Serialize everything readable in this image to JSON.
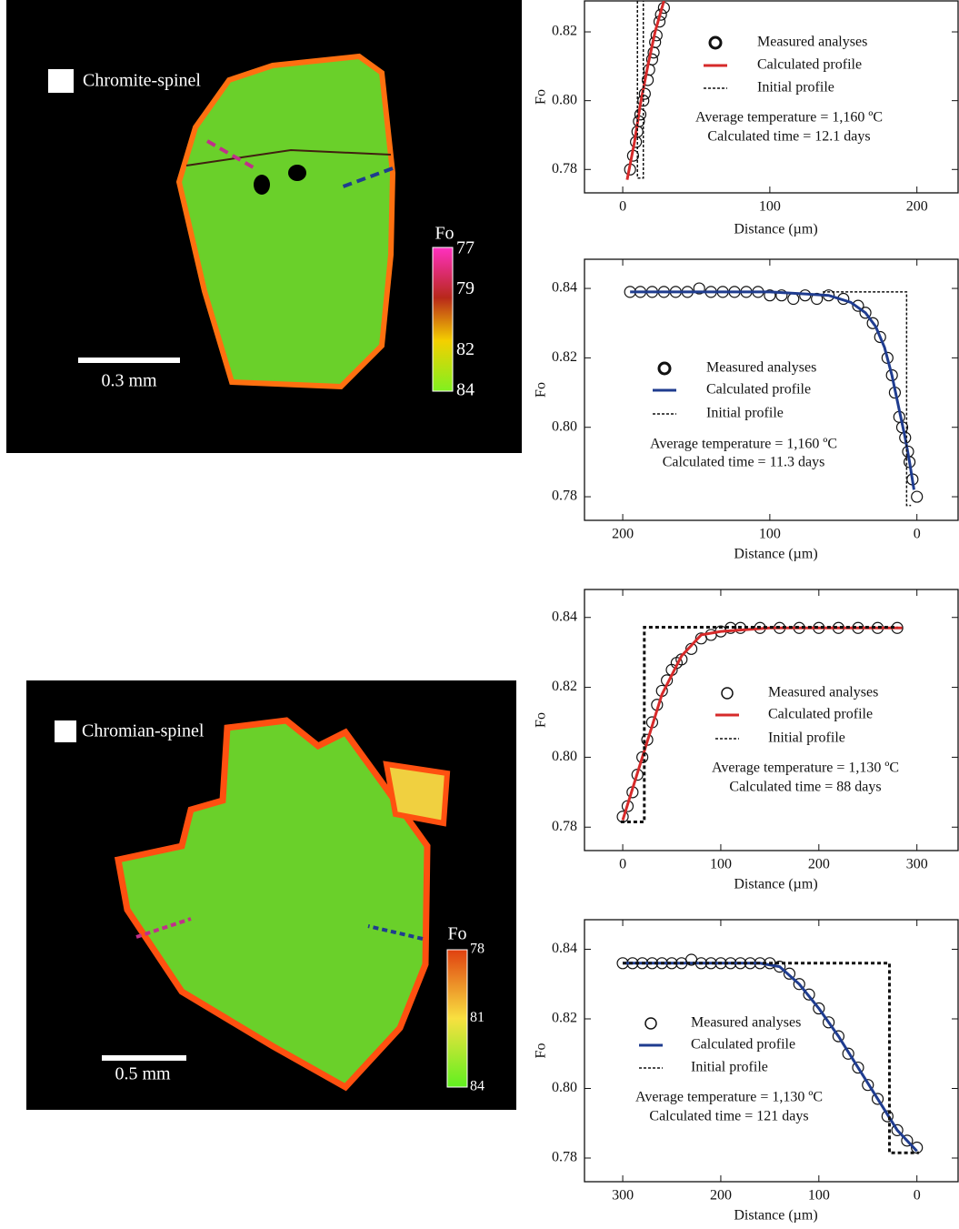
{
  "maps": [
    {
      "legend_label": "Chromite-spinel",
      "scale_bar": "0.3 mm",
      "colorbar": {
        "title": "Fo",
        "ticks": [
          77,
          79,
          82,
          84
        ]
      }
    },
    {
      "legend_label": "Chromian-spinel",
      "scale_bar": "0.5 mm",
      "colorbar": {
        "title": "Fo",
        "ticks": [
          78,
          81,
          84
        ]
      }
    }
  ],
  "chart_data": [
    {
      "type": "line",
      "xlabel": "Distance (µm)",
      "ylabel": "Fo",
      "xlim": [
        -26,
        228
      ],
      "ylim": [
        0.7732,
        0.829
      ],
      "xticks": [
        0,
        100,
        200
      ],
      "yticks": [
        0.78,
        {
          "value": 0.8,
          "label": "0.80"
        },
        0.82
      ],
      "annotations": [
        "Average temperature = 1,160 ºC",
        "Calculated time = 12.1 days"
      ],
      "series": [
        {
          "name": "Measured analyses",
          "color": "#111111",
          "style": "markers",
          "x": [
            5,
            7,
            9,
            10,
            11,
            12,
            14,
            15,
            17,
            18,
            20,
            21,
            22,
            23,
            25,
            26,
            28
          ],
          "values": [
            0.78,
            0.784,
            0.788,
            0.791,
            0.794,
            0.796,
            0.8,
            0.802,
            0.806,
            0.809,
            0.812,
            0.814,
            0.817,
            0.819,
            0.823,
            0.825,
            0.827
          ]
        },
        {
          "name": "Calculated profile",
          "color": "#d62a2a",
          "style": "solid",
          "x": [
            3,
            8,
            12,
            17,
            22,
            28
          ],
          "values": [
            0.777,
            0.788,
            0.799,
            0.81,
            0.82,
            0.829
          ]
        },
        {
          "name": "Initial profile",
          "color": "#111111",
          "style": "dashed",
          "x": [
            10,
            10,
            14,
            14
          ],
          "values": [
            0.829,
            0.7775,
            0.7775,
            0.829
          ]
        }
      ]
    },
    {
      "type": "line",
      "xlabel": "Distance (µm)",
      "ylabel": "Fo",
      "xlim": [
        226,
        -28
      ],
      "ylim": [
        0.7732,
        0.8484
      ],
      "xticks": [
        200,
        100,
        0
      ],
      "yticks": [
        0.78,
        {
          "value": 0.8,
          "label": "0.80"
        },
        0.82,
        0.84
      ],
      "annotations": [
        "Average temperature = 1,160 ºC",
        "Calculated time = 11.3 days"
      ],
      "series": [
        {
          "name": "Measured analyses",
          "color": "#111111",
          "style": "markers",
          "x": [
            195,
            188,
            180,
            172,
            164,
            156,
            148,
            140,
            132,
            124,
            116,
            108,
            100,
            92,
            84,
            76,
            68,
            60,
            50,
            40,
            35,
            30,
            25,
            20,
            17,
            15,
            12,
            10,
            8,
            6,
            5,
            3,
            0
          ],
          "values": [
            0.839,
            0.839,
            0.839,
            0.839,
            0.839,
            0.839,
            0.84,
            0.839,
            0.839,
            0.839,
            0.839,
            0.839,
            0.838,
            0.838,
            0.837,
            0.838,
            0.837,
            0.838,
            0.837,
            0.835,
            0.833,
            0.83,
            0.826,
            0.82,
            0.815,
            0.81,
            0.803,
            0.8,
            0.797,
            0.793,
            0.79,
            0.785,
            0.78
          ]
        },
        {
          "name": "Calculated profile",
          "color": "#1f3c8f",
          "style": "solid",
          "x": [
            195,
            100,
            60,
            45,
            35,
            28,
            22,
            17,
            12,
            8,
            5,
            2
          ],
          "values": [
            0.839,
            0.839,
            0.838,
            0.836,
            0.833,
            0.829,
            0.823,
            0.815,
            0.805,
            0.797,
            0.79,
            0.782
          ]
        },
        {
          "name": "Initial profile",
          "color": "#111111",
          "style": "dashed",
          "x": [
            64,
            7,
            7,
            4
          ],
          "values": [
            0.839,
            0.839,
            0.7775,
            0.7775
          ]
        }
      ]
    },
    {
      "type": "line",
      "xlabel": "Distance (µm)",
      "ylabel": "Fo",
      "xlim": [
        -39,
        342
      ],
      "ylim": [
        0.7733,
        0.848
      ],
      "xticks": [
        0,
        100,
        200,
        300
      ],
      "yticks": [
        0.78,
        {
          "value": 0.8,
          "label": "0.80"
        },
        0.82,
        0.84
      ],
      "annotations": [
        "Average temperature = 1,130 ºC",
        "Calculated time = 88 days"
      ],
      "series": [
        {
          "name": "Measured analyses",
          "color": "#111111",
          "style": "markers",
          "x": [
            0,
            5,
            10,
            15,
            20,
            25,
            30,
            35,
            40,
            45,
            50,
            55,
            60,
            70,
            80,
            90,
            100,
            110,
            120,
            140,
            160,
            180,
            200,
            220,
            240,
            260,
            280
          ],
          "values": [
            0.783,
            0.786,
            0.79,
            0.795,
            0.8,
            0.805,
            0.81,
            0.815,
            0.819,
            0.822,
            0.825,
            0.827,
            0.828,
            0.831,
            0.834,
            0.835,
            0.836,
            0.837,
            0.837,
            0.837,
            0.837,
            0.837,
            0.837,
            0.837,
            0.837,
            0.837,
            0.837
          ]
        },
        {
          "name": "Calculated profile",
          "color": "#d62a2a",
          "style": "solid",
          "x": [
            0,
            20,
            40,
            60,
            80,
            100,
            150,
            285
          ],
          "values": [
            0.782,
            0.8,
            0.818,
            0.829,
            0.835,
            0.836,
            0.837,
            0.837
          ]
        },
        {
          "name": "Initial profile",
          "color": "#111111",
          "style": "dashed",
          "x": [
            -2,
            22,
            22,
            280
          ],
          "values": [
            0.7815,
            0.7815,
            0.8372,
            0.8372
          ]
        }
      ]
    },
    {
      "type": "line",
      "xlabel": "Distance (µm)",
      "ylabel": "Fo",
      "xlim": [
        339,
        -42
      ],
      "ylim": [
        0.7732,
        0.8485
      ],
      "xticks": [
        300,
        200,
        100,
        0
      ],
      "yticks": [
        0.78,
        {
          "value": 0.8,
          "label": "0.80"
        },
        0.82,
        0.84
      ],
      "annotations": [
        "Average temperature = 1,130 ºC",
        "Calculated time = 121 days"
      ],
      "series": [
        {
          "name": "Measured analyses",
          "color": "#111111",
          "style": "markers",
          "x": [
            300,
            290,
            280,
            270,
            260,
            250,
            240,
            230,
            220,
            210,
            200,
            190,
            180,
            170,
            160,
            150,
            140,
            130,
            120,
            110,
            100,
            90,
            80,
            70,
            60,
            50,
            40,
            30,
            20,
            10,
            0
          ],
          "values": [
            0.836,
            0.836,
            0.836,
            0.836,
            0.836,
            0.836,
            0.836,
            0.837,
            0.836,
            0.836,
            0.836,
            0.836,
            0.836,
            0.836,
            0.836,
            0.836,
            0.835,
            0.833,
            0.83,
            0.827,
            0.823,
            0.819,
            0.815,
            0.81,
            0.806,
            0.801,
            0.797,
            0.792,
            0.788,
            0.785,
            0.783
          ]
        },
        {
          "name": "Calculated profile",
          "color": "#1f3c8f",
          "style": "solid",
          "x": [
            300,
            160,
            140,
            120,
            100,
            80,
            60,
            40,
            20,
            0
          ],
          "values": [
            0.836,
            0.836,
            0.835,
            0.83,
            0.823,
            0.815,
            0.806,
            0.797,
            0.788,
            0.782
          ]
        },
        {
          "name": "Initial profile",
          "color": "#111111",
          "style": "dashed",
          "x": [
            300,
            28,
            28,
            -2
          ],
          "values": [
            0.836,
            0.836,
            0.7815,
            0.7815
          ]
        }
      ]
    }
  ]
}
